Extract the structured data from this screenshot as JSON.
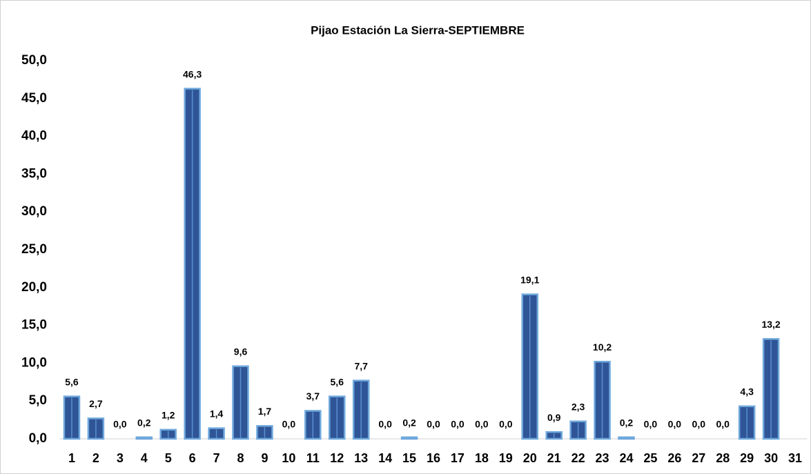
{
  "chart_data": {
    "type": "bar",
    "title": "Pijao Estación La Sierra-SEPTIEMBRE",
    "categories": [
      "1",
      "2",
      "3",
      "4",
      "5",
      "6",
      "7",
      "8",
      "9",
      "10",
      "11",
      "12",
      "13",
      "14",
      "15",
      "16",
      "17",
      "18",
      "19",
      "20",
      "21",
      "22",
      "23",
      "24",
      "25",
      "26",
      "27",
      "28",
      "29",
      "30",
      "31"
    ],
    "values": [
      5.6,
      2.7,
      0,
      0.2,
      1.2,
      46.3,
      1.4,
      9.6,
      1.7,
      0,
      3.7,
      5.6,
      7.7,
      0,
      0.2,
      0,
      0,
      0,
      0,
      19.1,
      0.9,
      2.3,
      10.2,
      0.2,
      0,
      0,
      0,
      0,
      4.3,
      13.2,
      null
    ],
    "value_labels": [
      "5,6",
      "2,7",
      "0,0",
      "0,2",
      "1,2",
      "46,3",
      "1,4",
      "9,6",
      "1,7",
      "0,0",
      "3,7",
      "5,6",
      "7,7",
      "0,0",
      "0,2",
      "0,0",
      "0,0",
      "0,0",
      "0,0",
      "19,1",
      "0,9",
      "2,3",
      "10,2",
      "0,2",
      "0,0",
      "0,0",
      "0,0",
      "0,0",
      "4,3",
      "13,2",
      null
    ],
    "color": "#2f5597",
    "ylim": [
      0,
      50
    ],
    "yticks": [
      {
        "value": 0,
        "label": "0,0"
      },
      {
        "value": 5,
        "label": "5,0"
      },
      {
        "value": 10,
        "label": "10,0"
      },
      {
        "value": 15,
        "label": "15,0"
      },
      {
        "value": 20,
        "label": "20,0"
      },
      {
        "value": 25,
        "label": "25,0"
      },
      {
        "value": 30,
        "label": "30,0"
      },
      {
        "value": 35,
        "label": "35,0"
      },
      {
        "value": 40,
        "label": "40,0"
      },
      {
        "value": 45,
        "label": "45,0"
      },
      {
        "value": 50,
        "label": "50,0"
      }
    ],
    "grid": false
  }
}
